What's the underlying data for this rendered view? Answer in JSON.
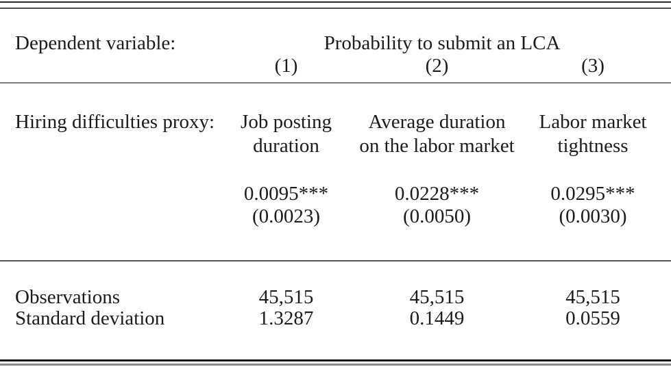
{
  "table": {
    "header": {
      "row_label": "Dependent variable:",
      "dependent_variable": "Probability to submit an LCA",
      "column_numbers": [
        "(1)",
        "(2)",
        "(3)"
      ]
    },
    "proxy": {
      "row_label": "Hiring difficulties proxy:",
      "columns": [
        {
          "line1": "Job posting",
          "line2": "duration"
        },
        {
          "line1": "Average duration",
          "line2": "on the labor market"
        },
        {
          "line1": "Labor market",
          "line2": "tightness"
        }
      ]
    },
    "estimates": {
      "coefficients": [
        "0.0095***",
        "0.0228***",
        "0.0295***"
      ],
      "standard_errors": [
        "(0.0023)",
        "(0.0050)",
        "(0.0030)"
      ]
    },
    "statistics": [
      {
        "label": "Observations",
        "values": [
          "45,515",
          "45,515",
          "45,515"
        ]
      },
      {
        "label": "Standard deviation",
        "values": [
          "1.3287",
          "0.1449",
          "0.0559"
        ]
      }
    ]
  }
}
